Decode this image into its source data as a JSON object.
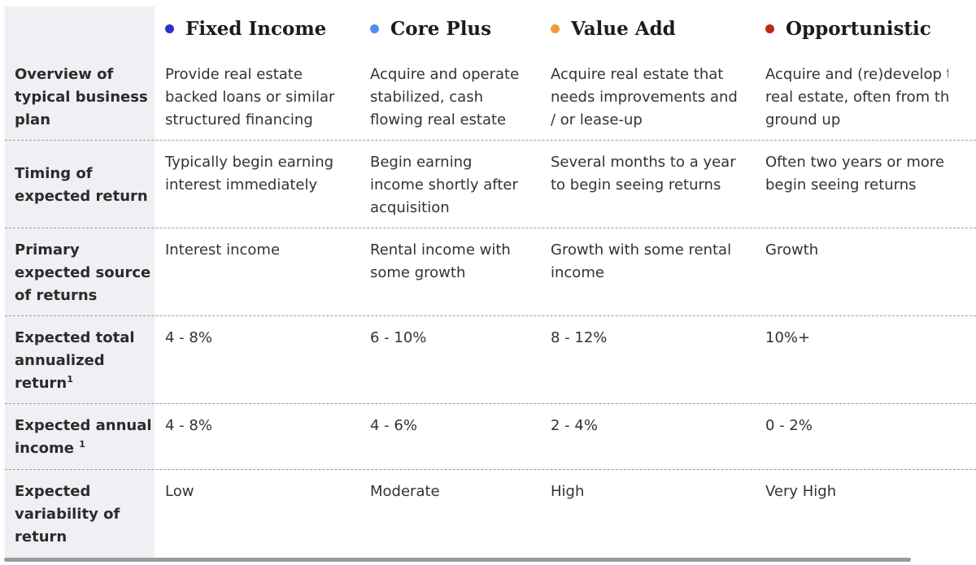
{
  "columns": [
    {
      "name": "Fixed Income",
      "color": "#2b34c9"
    },
    {
      "name": "Core Plus",
      "color": "#4f8ef0"
    },
    {
      "name": "Value Add",
      "color": "#f29a3a"
    },
    {
      "name": "Opportunistic",
      "color": "#c2241e"
    }
  ],
  "rows": [
    {
      "label": "Overview of typical business plan",
      "cells": [
        "Provide real estate\nbacked loans or similar\nstructured financing",
        "Acquire and operate\nstabilized, cash\nflowing real estate",
        "Acquire real estate that\nneeds improvements and\n/ or lease-up",
        "Acquire and (re)develop t\nreal estate, often from th\nground up"
      ]
    },
    {
      "label": "Timing of expected return",
      "cells": [
        "Typically begin earning\ninterest immediately",
        "Begin earning\nincome shortly after\nacquisition",
        "Several months to a year\nto begin seeing returns",
        "Often two years or more t\nbegin seeing returns"
      ]
    },
    {
      "label": "Primary expected source of returns",
      "cells": [
        "Interest income",
        "Rental income with\nsome growth",
        "Growth with some rental\nincome",
        "Growth"
      ]
    },
    {
      "label": "Expected total annualized return",
      "footnote": "1",
      "cells": [
        "4 - 8%",
        "6 - 10%",
        "8 - 12%",
        "10%+"
      ]
    },
    {
      "label": "Expected annual income",
      "footnote": "1",
      "cells": [
        "4 - 8%",
        "4 - 6%",
        "2 - 4%",
        "0 - 2%"
      ]
    },
    {
      "label": "Expected variability of return",
      "cells": [
        "Low",
        "Moderate",
        "High",
        "Very High"
      ]
    }
  ]
}
